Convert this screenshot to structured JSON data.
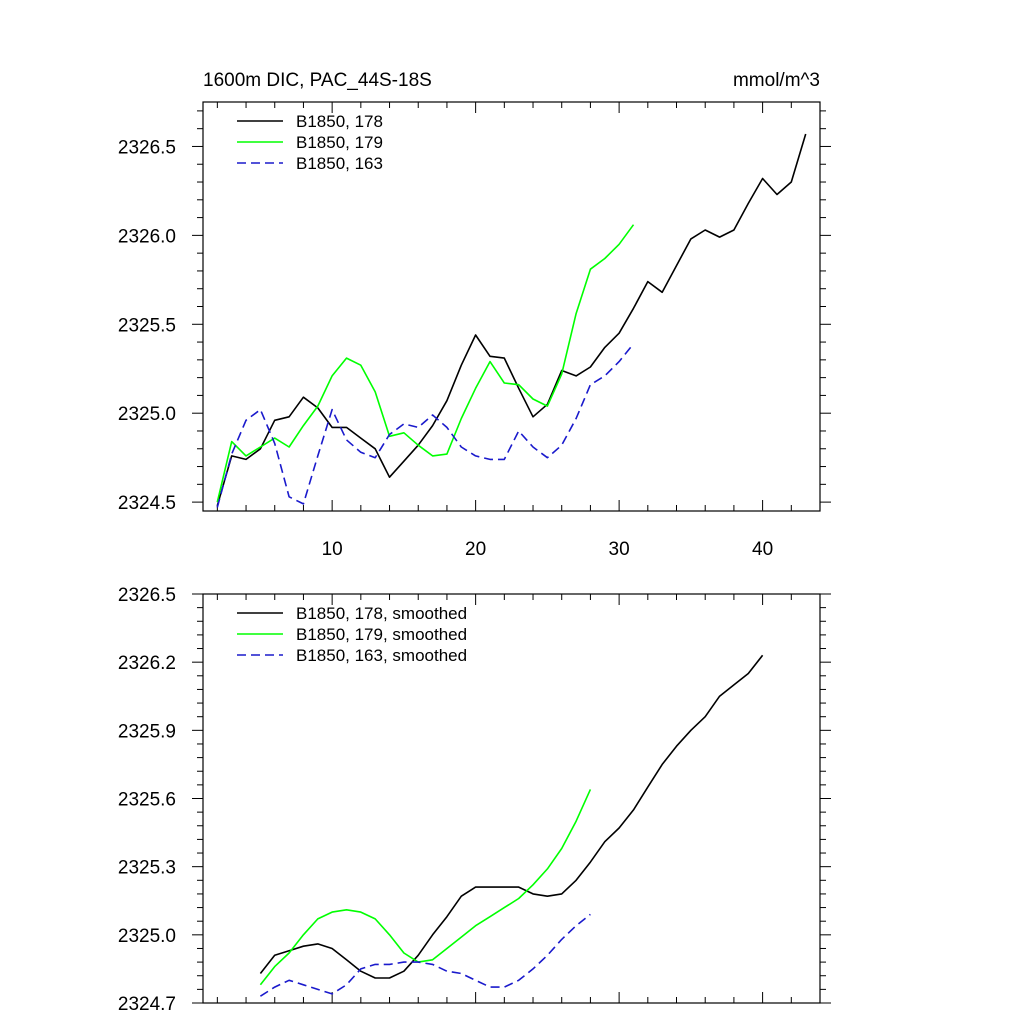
{
  "chart_data": [
    {
      "type": "line",
      "title": "1600m DIC, PAC_44S-18S",
      "units": "mmol/m^3",
      "xlim": [
        1,
        44
      ],
      "ylim": [
        2324.45,
        2326.75
      ],
      "xticks": [
        10,
        20,
        30,
        40
      ],
      "yticks": [
        2324.5,
        2325.0,
        2325.5,
        2326.0,
        2326.5
      ],
      "ytick_labels": [
        "2324.5",
        "2325.0",
        "2325.5",
        "2326.0",
        "2326.5"
      ],
      "legend_position": "top-left",
      "series": [
        {
          "name": "B1850, 178",
          "color": "#000000",
          "dash": "solid",
          "x": [
            2,
            3,
            4,
            5,
            6,
            7,
            8,
            9,
            10,
            11,
            12,
            13,
            14,
            15,
            16,
            17,
            18,
            19,
            20,
            21,
            22,
            23,
            24,
            25,
            26,
            27,
            28,
            29,
            30,
            31,
            32,
            33,
            34,
            35,
            36,
            37,
            38,
            39,
            40,
            41,
            42,
            43
          ],
          "y": [
            2324.48,
            2324.76,
            2324.74,
            2324.8,
            2324.96,
            2324.98,
            2325.09,
            2325.03,
            2324.92,
            2324.92,
            2324.86,
            2324.8,
            2324.64,
            2324.73,
            2324.82,
            2324.93,
            2325.07,
            2325.27,
            2325.44,
            2325.32,
            2325.31,
            2325.14,
            2324.98,
            2325.05,
            2325.24,
            2325.21,
            2325.26,
            2325.37,
            2325.45,
            2325.59,
            2325.74,
            2325.68,
            2325.83,
            2325.98,
            2326.03,
            2325.99,
            2326.03,
            2326.18,
            2326.32,
            2326.23,
            2326.3,
            2326.57
          ]
        },
        {
          "name": "B1850, 179",
          "color": "#00ff00",
          "dash": "solid",
          "x": [
            2,
            3,
            4,
            5,
            6,
            7,
            8,
            9,
            10,
            11,
            12,
            13,
            14,
            15,
            16,
            17,
            18,
            19,
            20,
            21,
            22,
            23,
            24,
            25,
            26,
            27,
            28,
            29,
            30,
            31
          ],
          "y": [
            2324.5,
            2324.84,
            2324.76,
            2324.81,
            2324.86,
            2324.81,
            2324.93,
            2325.04,
            2325.21,
            2325.31,
            2325.27,
            2325.12,
            2324.87,
            2324.89,
            2324.82,
            2324.76,
            2324.77,
            2324.97,
            2325.14,
            2325.29,
            2325.17,
            2325.16,
            2325.08,
            2325.04,
            2325.22,
            2325.56,
            2325.81,
            2325.87,
            2325.95,
            2326.06
          ]
        },
        {
          "name": "B1850, 163",
          "color": "#1a1acc",
          "dash": "dashed",
          "x": [
            2,
            3,
            4,
            5,
            6,
            7,
            8,
            9,
            10,
            11,
            12,
            13,
            14,
            15,
            16,
            17,
            18,
            19,
            20,
            21,
            22,
            23,
            24,
            25,
            26,
            27,
            28,
            29,
            30,
            31
          ],
          "y": [
            2324.47,
            2324.77,
            2324.96,
            2325.02,
            2324.83,
            2324.53,
            2324.49,
            2324.76,
            2325.02,
            2324.85,
            2324.78,
            2324.75,
            2324.88,
            2324.94,
            2324.92,
            2324.99,
            2324.92,
            2324.81,
            2324.76,
            2324.74,
            2324.74,
            2324.9,
            2324.81,
            2324.75,
            2324.82,
            2324.97,
            2325.16,
            2325.21,
            2325.29,
            2325.39
          ]
        }
      ]
    },
    {
      "type": "line",
      "xlim": [
        1,
        44
      ],
      "ylim": [
        2324.7,
        2326.5
      ],
      "xticks": [
        10,
        20,
        30,
        40
      ],
      "yticks": [
        2324.7,
        2325.0,
        2325.3,
        2325.6,
        2325.9,
        2326.2,
        2326.5
      ],
      "ytick_labels": [
        "2324.7",
        "2325.0",
        "2325.3",
        "2325.6",
        "2325.9",
        "2326.2",
        "2326.5"
      ],
      "legend_position": "top-left",
      "series": [
        {
          "name": "B1850, 178, smoothed",
          "color": "#000000",
          "dash": "solid",
          "x": [
            5,
            6,
            7,
            8,
            9,
            10,
            11,
            12,
            13,
            14,
            15,
            16,
            17,
            18,
            19,
            20,
            21,
            22,
            23,
            24,
            25,
            26,
            27,
            28,
            29,
            30,
            31,
            32,
            33,
            34,
            35,
            36,
            37,
            38,
            39,
            40
          ],
          "y": [
            2324.83,
            2324.91,
            2324.93,
            2324.95,
            2324.96,
            2324.94,
            2324.89,
            2324.84,
            2324.81,
            2324.81,
            2324.84,
            2324.91,
            2325.0,
            2325.08,
            2325.17,
            2325.21,
            2325.21,
            2325.21,
            2325.21,
            2325.18,
            2325.17,
            2325.18,
            2325.24,
            2325.32,
            2325.41,
            2325.47,
            2325.55,
            2325.65,
            2325.75,
            2325.83,
            2325.9,
            2325.96,
            2326.05,
            2326.1,
            2326.15,
            2326.23
          ]
        },
        {
          "name": "B1850, 179, smoothed",
          "color": "#00ff00",
          "dash": "solid",
          "x": [
            5,
            6,
            7,
            8,
            9,
            10,
            11,
            12,
            13,
            14,
            15,
            16,
            17,
            18,
            19,
            20,
            21,
            22,
            23,
            24,
            25,
            26,
            27,
            28
          ],
          "y": [
            2324.78,
            2324.86,
            2324.92,
            2325.0,
            2325.07,
            2325.1,
            2325.11,
            2325.1,
            2325.07,
            2325.0,
            2324.92,
            2324.88,
            2324.89,
            2324.94,
            2324.99,
            2325.04,
            2325.08,
            2325.12,
            2325.16,
            2325.22,
            2325.29,
            2325.38,
            2325.5,
            2325.64
          ]
        },
        {
          "name": "B1850, 163, smoothed",
          "color": "#1a1acc",
          "dash": "dashed",
          "x": [
            5,
            6,
            7,
            8,
            9,
            10,
            11,
            12,
            13,
            14,
            15,
            16,
            17,
            18,
            19,
            20,
            21,
            22,
            23,
            24,
            25,
            26,
            27,
            28
          ],
          "y": [
            2324.73,
            2324.77,
            2324.8,
            2324.78,
            2324.76,
            2324.74,
            2324.78,
            2324.85,
            2324.87,
            2324.87,
            2324.88,
            2324.88,
            2324.87,
            2324.84,
            2324.83,
            2324.8,
            2324.77,
            2324.77,
            2324.8,
            2324.85,
            2324.91,
            2324.98,
            2325.04,
            2325.09
          ]
        }
      ]
    }
  ]
}
